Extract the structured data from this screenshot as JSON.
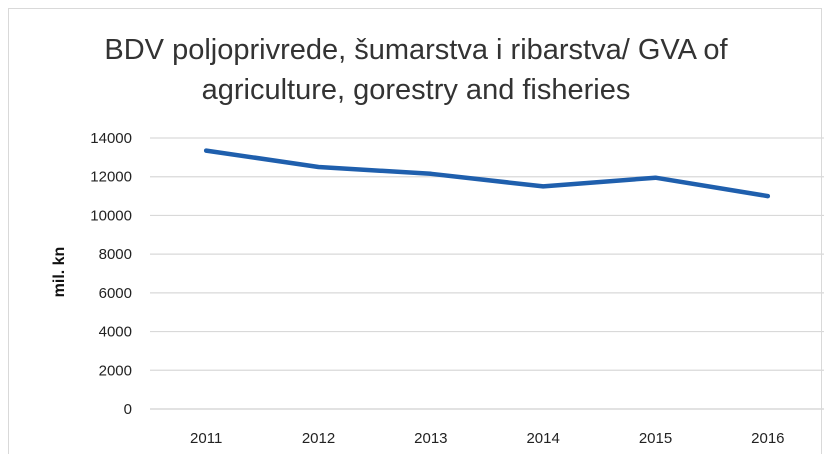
{
  "chart_data": {
    "type": "line",
    "title_line1": "BDV poljoprivrede, šumarstva i ribarstva/ GVA of",
    "title_line2": "agriculture, gorestry and fisheries",
    "xlabel": "",
    "ylabel": "mil. kn",
    "categories": [
      "2011",
      "2012",
      "2013",
      "2014",
      "2015",
      "2016"
    ],
    "series": [
      {
        "values": [
          13350,
          12500,
          12150,
          11500,
          11950,
          11000
        ]
      }
    ],
    "ylim": [
      0,
      14000
    ],
    "yticks": [
      "14000",
      "12000",
      "10000",
      "8000",
      "6000",
      "4000",
      "2000",
      "0"
    ],
    "ytick_values": [
      14000,
      12000,
      10000,
      8000,
      6000,
      4000,
      2000,
      0
    ],
    "grid": true,
    "legend": "none",
    "line_color": "#1f5fad",
    "grid_color": "#d9d9d9"
  }
}
